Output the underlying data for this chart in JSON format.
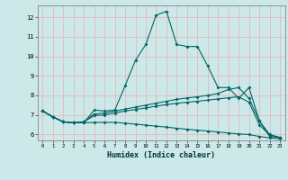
{
  "xlabel": "Humidex (Indice chaleur)",
  "bg_color": "#cce8e8",
  "plot_bg_color": "#cce8e8",
  "grid_color": "#e8b8b8",
  "line_color": "#006666",
  "xlim": [
    -0.5,
    23.5
  ],
  "ylim": [
    5.7,
    12.6
  ],
  "xticks": [
    0,
    1,
    2,
    3,
    4,
    5,
    6,
    7,
    8,
    9,
    10,
    11,
    12,
    13,
    14,
    15,
    16,
    17,
    18,
    19,
    20,
    21,
    22,
    23
  ],
  "yticks": [
    6,
    7,
    8,
    9,
    10,
    11,
    12
  ],
  "line1_x": [
    0,
    1,
    2,
    3,
    4,
    5,
    6,
    7,
    8,
    9,
    10,
    11,
    12,
    13,
    14,
    15,
    16,
    17,
    18,
    19,
    20,
    21,
    22,
    23
  ],
  "line1_y": [
    7.2,
    6.9,
    6.65,
    6.6,
    6.6,
    7.25,
    7.2,
    7.25,
    8.5,
    9.8,
    10.6,
    12.1,
    12.3,
    10.6,
    10.5,
    10.5,
    9.5,
    8.4,
    8.4,
    7.85,
    8.4,
    6.7,
    5.9,
    5.85
  ],
  "line2_x": [
    0,
    1,
    2,
    3,
    4,
    5,
    6,
    7,
    8,
    9,
    10,
    11,
    12,
    13,
    14,
    15,
    16,
    17,
    18,
    19,
    20,
    21,
    22,
    23
  ],
  "line2_y": [
    7.2,
    6.9,
    6.65,
    6.6,
    6.65,
    7.05,
    7.1,
    7.2,
    7.3,
    7.4,
    7.5,
    7.6,
    7.7,
    7.8,
    7.87,
    7.93,
    8.0,
    8.1,
    8.3,
    8.4,
    7.85,
    6.7,
    6.0,
    5.85
  ],
  "line3_x": [
    0,
    1,
    2,
    3,
    4,
    5,
    6,
    7,
    8,
    9,
    10,
    11,
    12,
    13,
    14,
    15,
    16,
    17,
    18,
    19,
    20,
    21,
    22,
    23
  ],
  "line3_y": [
    7.2,
    6.9,
    6.65,
    6.6,
    6.65,
    6.97,
    7.0,
    7.1,
    7.2,
    7.28,
    7.36,
    7.45,
    7.53,
    7.6,
    7.65,
    7.7,
    7.76,
    7.82,
    7.88,
    7.93,
    7.65,
    6.5,
    5.97,
    5.85
  ],
  "line4_x": [
    0,
    1,
    2,
    3,
    4,
    5,
    6,
    7,
    8,
    9,
    10,
    11,
    12,
    13,
    14,
    15,
    16,
    17,
    18,
    19,
    20,
    21,
    22,
    23
  ],
  "line4_y": [
    7.2,
    6.9,
    6.65,
    6.6,
    6.6,
    6.62,
    6.62,
    6.62,
    6.58,
    6.53,
    6.48,
    6.43,
    6.38,
    6.32,
    6.27,
    6.22,
    6.18,
    6.13,
    6.08,
    6.03,
    6.0,
    5.9,
    5.83,
    5.78
  ]
}
